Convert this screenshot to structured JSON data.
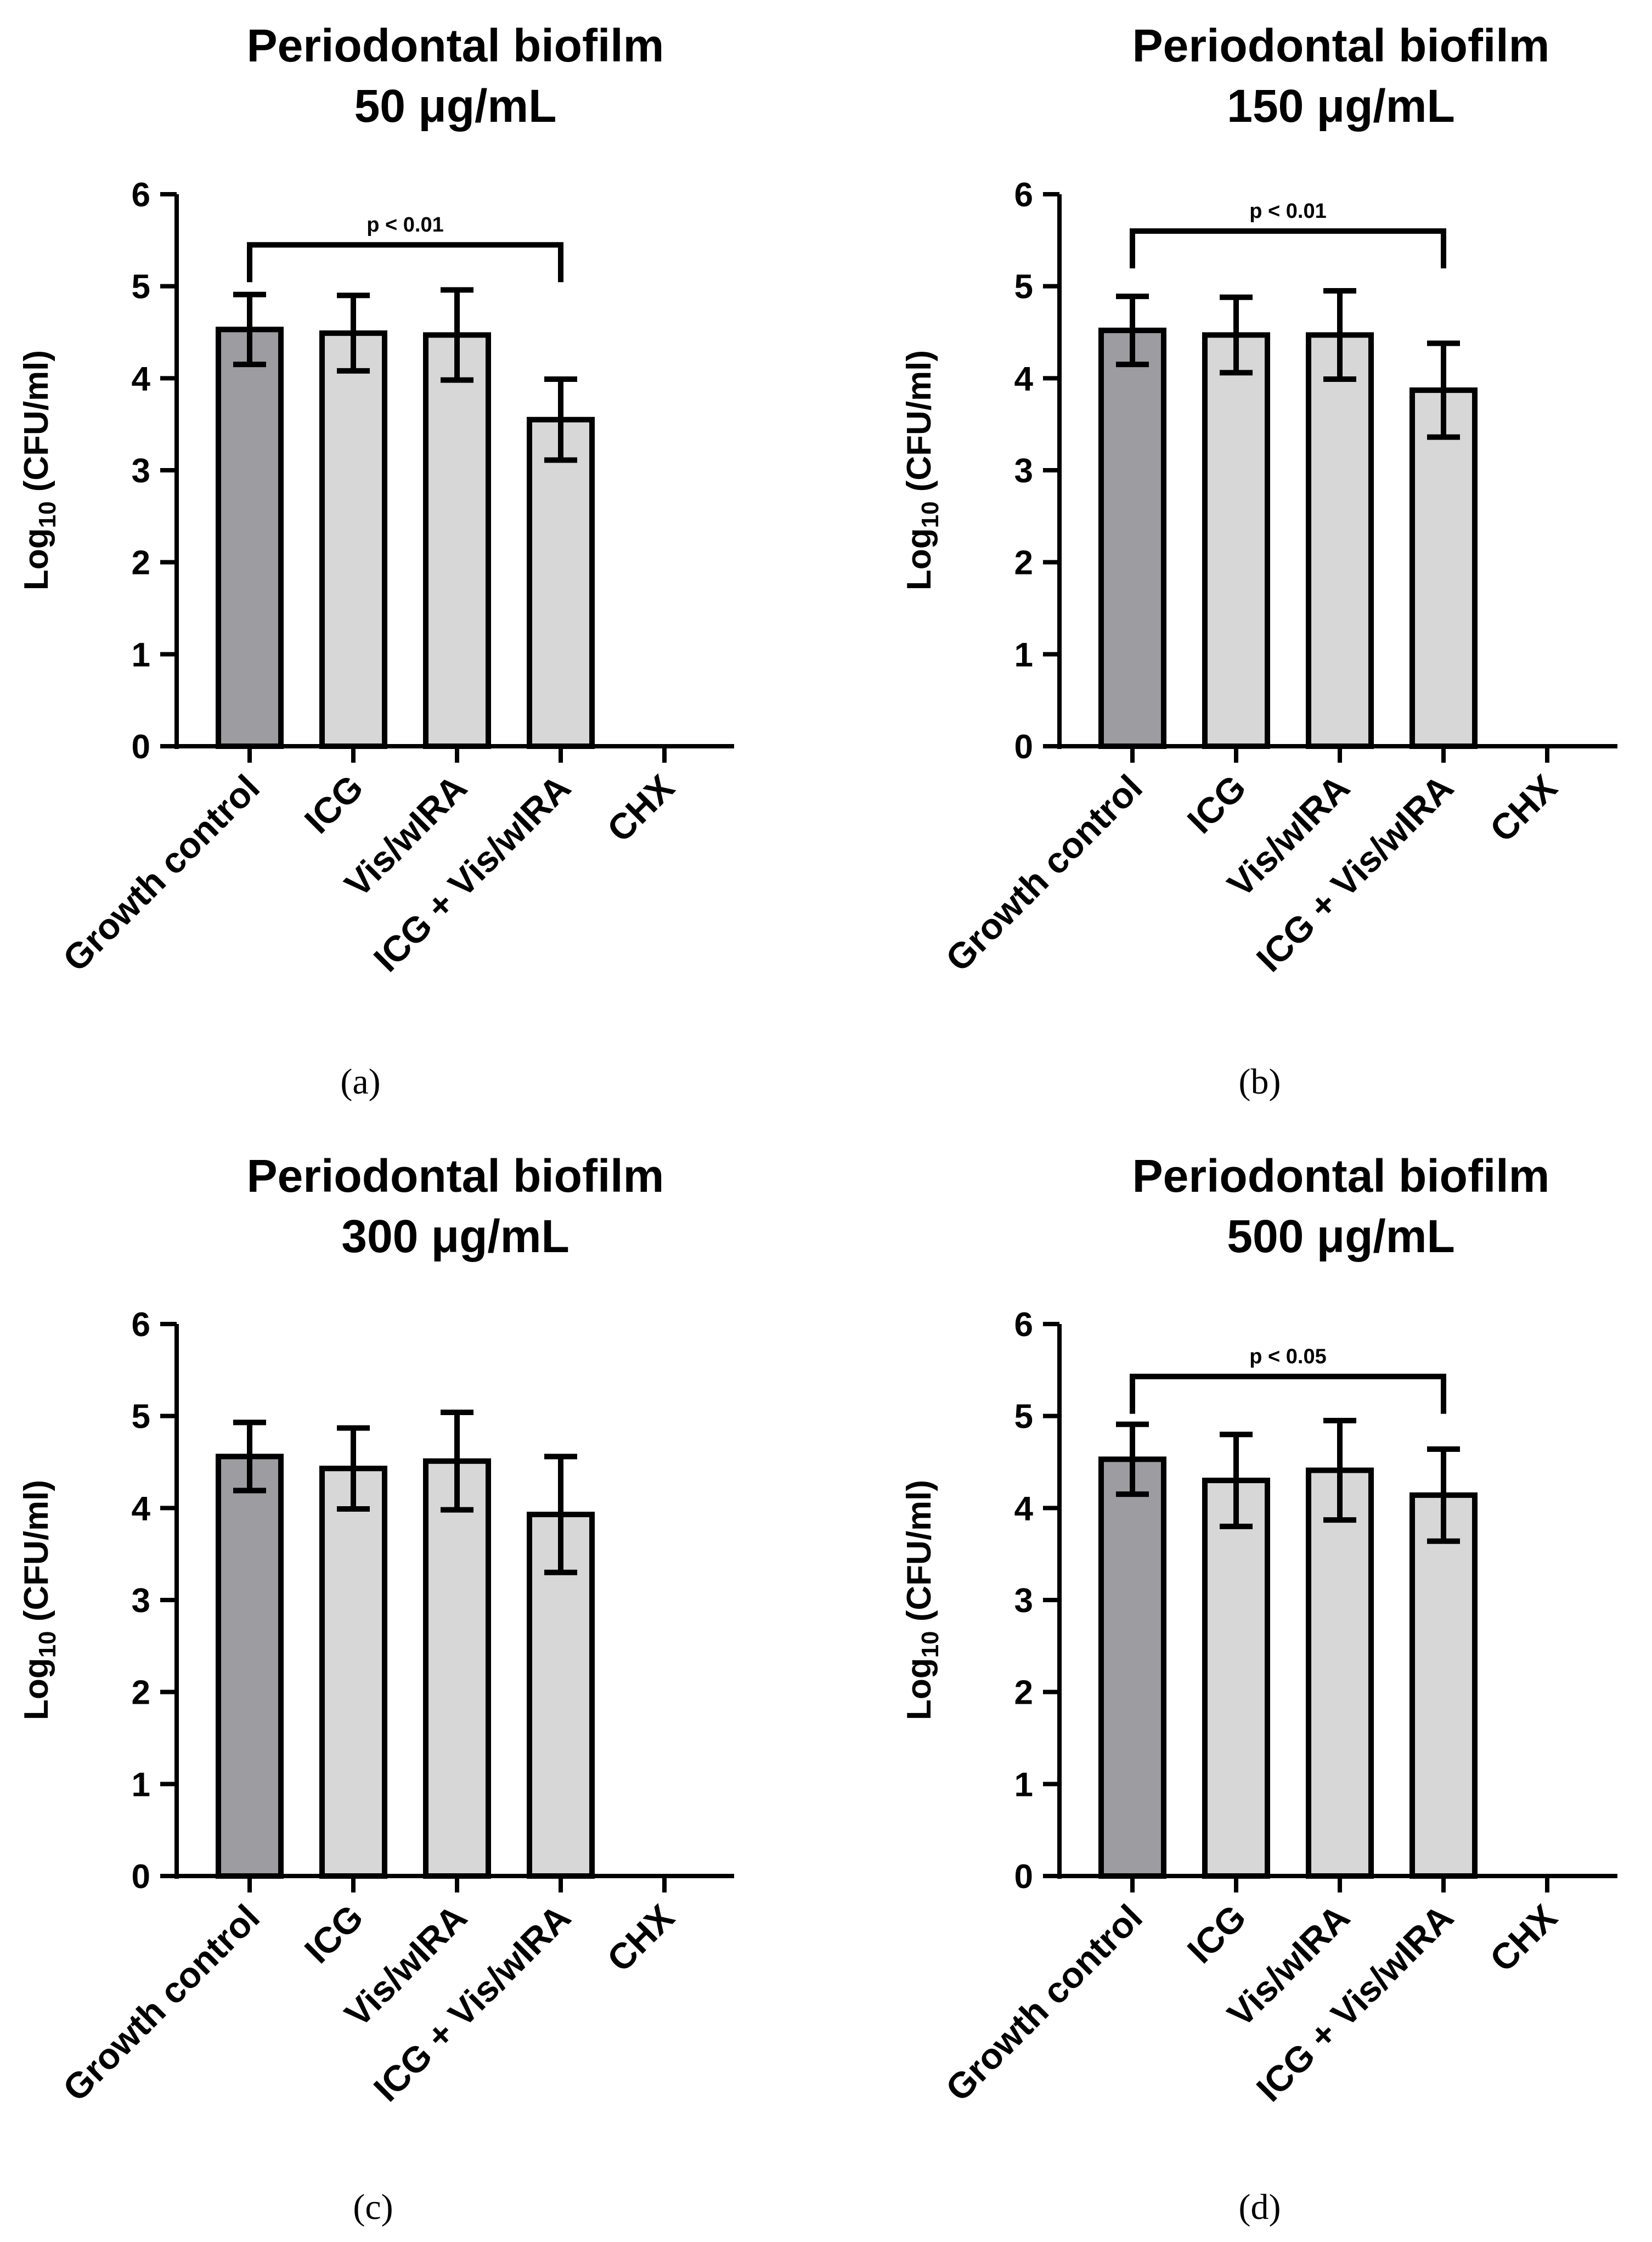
{
  "figure": {
    "colors": {
      "control": "#9d9ca1",
      "treatment": "#d7d7d7",
      "stroke": "#000000"
    },
    "y_label_main": "Log",
    "y_label_sub": "10",
    "y_label_rest": " (CFU/ml)"
  },
  "chart_data": [
    {
      "type": "bar",
      "title": "Periodontal biofilm",
      "subtitle": "50 μg/mL",
      "panel_label": "(a)",
      "categories": [
        "Growth control",
        "ICG",
        "Vis/wIRA",
        "ICG + Vis/wIRA",
        "CHX"
      ],
      "values": [
        4.53,
        4.49,
        4.47,
        3.55,
        0
      ],
      "errors": [
        0.38,
        0.41,
        0.49,
        0.44,
        0
      ],
      "ylim": [
        0,
        6
      ],
      "yticks": [
        "0",
        "1",
        "2",
        "3",
        "4",
        "5",
        "6"
      ],
      "ylabel": "Log10 (CFU/ml)",
      "significance": {
        "from": 0,
        "to": 3,
        "y": 5.45,
        "label": "p < 0.01"
      }
    },
    {
      "type": "bar",
      "title": "Periodontal biofilm",
      "subtitle": "150 μg/mL",
      "panel_label": "(b)",
      "categories": [
        "Growth control",
        "ICG",
        "Vis/wIRA",
        "ICG + Vis/wIRA",
        "CHX"
      ],
      "values": [
        4.52,
        4.47,
        4.47,
        3.87,
        0
      ],
      "errors": [
        0.37,
        0.41,
        0.48,
        0.51,
        0
      ],
      "ylim": [
        0,
        6
      ],
      "yticks": [
        "0",
        "1",
        "2",
        "3",
        "4",
        "5",
        "6"
      ],
      "ylabel": "Log10 (CFU/ml)",
      "significance": {
        "from": 0,
        "to": 3,
        "y": 5.6,
        "label": "p < 0.01"
      }
    },
    {
      "type": "bar",
      "title": "Periodontal biofilm",
      "subtitle": "300 μg/mL",
      "panel_label": "(c)",
      "categories": [
        "Growth control",
        "ICG",
        "Vis/wIRA",
        "ICG + Vis/wIRA",
        "CHX"
      ],
      "values": [
        4.56,
        4.43,
        4.51,
        3.93,
        0
      ],
      "errors": [
        0.37,
        0.44,
        0.53,
        0.63,
        0
      ],
      "ylim": [
        0,
        6
      ],
      "yticks": [
        "0",
        "1",
        "2",
        "3",
        "4",
        "5",
        "6"
      ],
      "ylabel": "Log10 (CFU/ml)",
      "significance": null
    },
    {
      "type": "bar",
      "title": "Periodontal biofilm",
      "subtitle": "500 μg/mL",
      "panel_label": "(d)",
      "categories": [
        "Growth control",
        "ICG",
        "Vis/wIRA",
        "ICG + Vis/wIRA",
        "CHX"
      ],
      "values": [
        4.53,
        4.3,
        4.41,
        4.14,
        0
      ],
      "errors": [
        0.38,
        0.5,
        0.54,
        0.5,
        0
      ],
      "ylim": [
        0,
        6
      ],
      "yticks": [
        "0",
        "1",
        "2",
        "3",
        "4",
        "5",
        "6"
      ],
      "ylabel": "Log10 (CFU/ml)",
      "significance": {
        "from": 0,
        "to": 3,
        "y": 5.43,
        "label": "p < 0.05"
      }
    }
  ]
}
